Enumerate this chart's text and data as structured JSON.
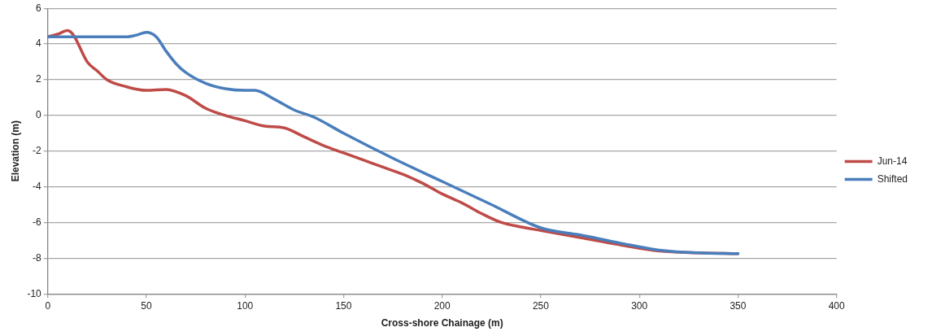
{
  "chart_data": {
    "type": "line",
    "xlabel": "Cross-shore Chainage (m)",
    "ylabel": "Elevation (m)",
    "xlim": [
      0,
      400
    ],
    "xticks": [
      0,
      50,
      100,
      150,
      200,
      250,
      300,
      350,
      400
    ],
    "ylim": [
      -10,
      6
    ],
    "yticks": [
      -10,
      -8,
      -6,
      -4,
      -2,
      0,
      2,
      4,
      6
    ],
    "grid": "y",
    "legend": "right",
    "marker": "none",
    "line_style": "solid",
    "series": [
      {
        "name": "Jun-14",
        "color": "#be4b48",
        "x": [
          0,
          5,
          10,
          13,
          20,
          25,
          30,
          40,
          50,
          60,
          70,
          80,
          90,
          100,
          110,
          120,
          130,
          140,
          150,
          160,
          170,
          180,
          190,
          200,
          210,
          220,
          230,
          240,
          250,
          270,
          290,
          310,
          330,
          350
        ],
        "values": [
          4.4,
          4.55,
          4.75,
          4.5,
          3.0,
          2.5,
          2.0,
          1.6,
          1.4,
          1.45,
          1.1,
          0.4,
          0.0,
          -0.3,
          -0.6,
          -0.7,
          -1.2,
          -1.7,
          -2.1,
          -2.5,
          -2.9,
          -3.3,
          -3.8,
          -4.4,
          -4.9,
          -5.5,
          -6.0,
          -6.25,
          -6.45,
          -6.85,
          -7.25,
          -7.6,
          -7.7,
          -7.75
        ]
      },
      {
        "name": "Shifted",
        "color": "#4a7ebb",
        "x": [
          0,
          40,
          45,
          50,
          55,
          60,
          65,
          70,
          80,
          90,
          100,
          105,
          115,
          125,
          135,
          150,
          175,
          200,
          225,
          250,
          270,
          290,
          310,
          330,
          350
        ],
        "values": [
          4.4,
          4.4,
          4.5,
          4.65,
          4.4,
          3.6,
          2.9,
          2.4,
          1.8,
          1.5,
          1.4,
          1.4,
          0.9,
          0.3,
          -0.1,
          -1.0,
          -2.4,
          -3.7,
          -5.0,
          -6.3,
          -6.7,
          -7.15,
          -7.55,
          -7.7,
          -7.75
        ]
      }
    ]
  }
}
